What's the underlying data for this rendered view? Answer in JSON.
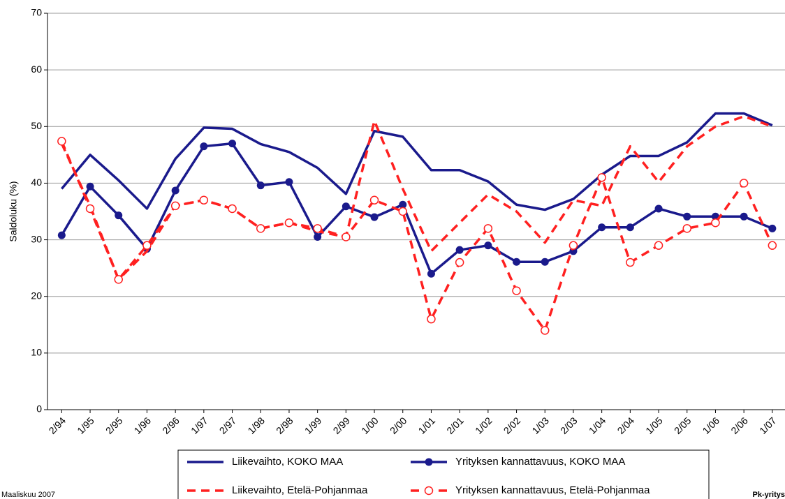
{
  "chart_data": {
    "type": "line",
    "y_label": "Saldoluku (%)",
    "footer_left": "Maaliskuu 2007",
    "footer_right": "Pk-yritys",
    "categories": [
      "2/94",
      "1/95",
      "2/95",
      "1/96",
      "2/96",
      "1/97",
      "2/97",
      "1/98",
      "2/98",
      "1/99",
      "2/99",
      "1/00",
      "2/00",
      "1/01",
      "2/01",
      "1/02",
      "2/02",
      "1/03",
      "2/03",
      "1/04",
      "2/04",
      "1/05",
      "2/05",
      "1/06",
      "2/06",
      "1/07"
    ],
    "series": [
      {
        "name": "Liikevaihto, KOKO MAA",
        "color": "#1a1a8c",
        "dash": false,
        "marker": "none",
        "values": [
          39,
          45,
          40.5,
          35.5,
          44.3,
          49.8,
          49.6,
          46.9,
          45.5,
          42.7,
          38.1,
          49.2,
          48.2,
          42.3,
          42.3,
          40.3,
          36.2,
          35.3,
          37.2,
          41.5,
          44.8,
          44.8,
          47.2,
          52.3,
          52.3,
          50.2
        ]
      },
      {
        "name": "Yrityksen kannattavuus, KOKO MAA",
        "color": "#1a1a8c",
        "dash": false,
        "marker": "filled-circle",
        "values": [
          30.8,
          39.4,
          34.3,
          28.4,
          38.7,
          46.5,
          47,
          39.6,
          40.2,
          30.5,
          35.9,
          34,
          36.2,
          24,
          28.2,
          29,
          26.1,
          26.1,
          28,
          32.2,
          32.2,
          35.5,
          34.1,
          34.1,
          34.1,
          32
        ]
      },
      {
        "name": "Liikevaihto, Etelä-Pohjanmaa",
        "color": "#ff2020",
        "dash": true,
        "marker": "none",
        "values": [
          47,
          36,
          23,
          28,
          36,
          37,
          35.5,
          32,
          33,
          31.5,
          30.5,
          51,
          39,
          28,
          33,
          38,
          35,
          29.5,
          37,
          36,
          46.5,
          40.2,
          46.5,
          50,
          51.8,
          50
        ]
      },
      {
        "name": "Yrityksen kannattavuus, Etelä-Pohjanmaa",
        "color": "#ff2020",
        "dash": true,
        "marker": "open-circle",
        "values": [
          47.4,
          35.5,
          23,
          29,
          36,
          37,
          35.5,
          32,
          33,
          32,
          30.5,
          37,
          35,
          16,
          26,
          32,
          21,
          14,
          29,
          41,
          26,
          29,
          32,
          33,
          40,
          29
        ]
      }
    ],
    "ylim": [
      0,
      70
    ],
    "yticks": [
      0,
      10,
      20,
      30,
      40,
      50,
      60,
      70
    ],
    "grid": true
  }
}
